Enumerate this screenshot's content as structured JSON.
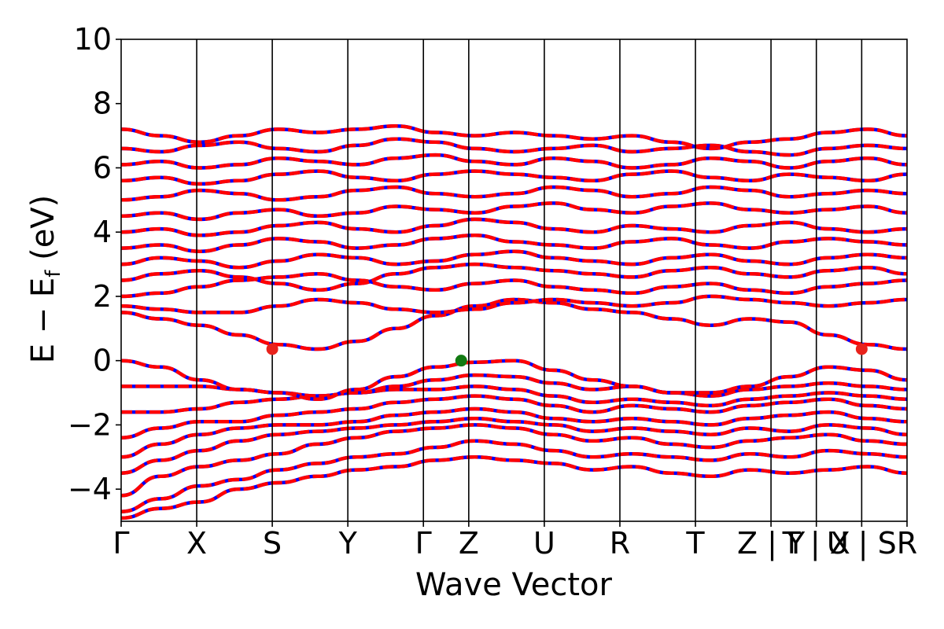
{
  "chart_data": {
    "type": "line",
    "title": "",
    "xlabel": "Wave Vector",
    "ylabel": "E − E_f (eV)",
    "ylabel_parts": {
      "main": "E − E",
      "sub": "f",
      "unit": " (eV)"
    },
    "ylim": [
      -5,
      10
    ],
    "yticks": [
      -4,
      -2,
      0,
      2,
      4,
      6,
      8,
      10
    ],
    "grid": false,
    "legend": "none",
    "kpath_positions": [
      0,
      1,
      2,
      3,
      4,
      4.6,
      5.6,
      6.6,
      7.6,
      8.6,
      9.2,
      9.8,
      10.4
    ],
    "kpath_labels": [
      "Γ",
      "X",
      "S",
      "Y",
      "Γ",
      "Z",
      "U",
      "R",
      "T",
      "Z | Y",
      "T | X",
      "U | S",
      "R"
    ],
    "segment_breaks": [
      8.6,
      9.2,
      9.8
    ],
    "series_colors": {
      "spin_up": "#ff0000",
      "spin_down": "#0000ff"
    },
    "band_edges": {
      "cbm": [
        {
          "k": 2,
          "energy": 0.36
        },
        {
          "k": 9.8,
          "energy": 0.36
        }
      ],
      "vbm": [
        {
          "k": 4.5,
          "energy": 0.0
        }
      ],
      "cbm_color": "#e8221c",
      "vbm_color": "#127a12"
    },
    "bands": [
      [
        -4.9,
        -4.6,
        -4.4,
        -4.0,
        -3.8,
        -3.6,
        -3.4,
        -3.3,
        -3.1,
        -3.0,
        -3.1,
        -3.2,
        -3.4,
        -3.3,
        -3.5,
        -3.6,
        -3.4,
        -3.5,
        -3.4,
        -3.3,
        -3.5
      ],
      [
        -4.7,
        -4.3,
        -3.9,
        -3.7,
        -3.4,
        -3.2,
        -3.0,
        -2.9,
        -2.7,
        -2.5,
        -2.6,
        -2.8,
        -3.0,
        -2.9,
        -3.0,
        -3.1,
        -2.9,
        -3.0,
        -2.8,
        -2.9,
        -3.0
      ],
      [
        -4.2,
        -3.6,
        -3.3,
        -3.1,
        -2.9,
        -2.6,
        -2.4,
        -2.2,
        -2.1,
        -2.0,
        -2.1,
        -2.3,
        -2.5,
        -2.4,
        -2.6,
        -2.7,
        -2.5,
        -2.4,
        -2.3,
        -2.5,
        -2.6
      ],
      [
        -3.5,
        -3.1,
        -2.8,
        -2.5,
        -2.3,
        -2.2,
        -2.1,
        -2.0,
        -1.9,
        -1.8,
        -1.9,
        -2.0,
        -2.2,
        -2.1,
        -2.2,
        -2.3,
        -2.1,
        -2.2,
        -2.0,
        -2.1,
        -2.3
      ],
      [
        -3.0,
        -2.6,
        -2.3,
        -2.1,
        -2.0,
        -2.0,
        -1.9,
        -1.7,
        -1.6,
        -1.5,
        -1.6,
        -1.8,
        -1.9,
        -1.8,
        -1.9,
        -2.0,
        -1.8,
        -1.7,
        -1.6,
        -1.8,
        -1.9
      ],
      [
        -2.4,
        -2.1,
        -1.9,
        -1.9,
        -1.7,
        -1.6,
        -1.5,
        -1.3,
        -1.2,
        -1.1,
        -1.2,
        -1.4,
        -1.6,
        -1.4,
        -1.5,
        -1.6,
        -1.4,
        -1.3,
        -1.2,
        -1.4,
        -1.5
      ],
      [
        -1.6,
        -1.6,
        -1.5,
        -1.3,
        -1.2,
        -1.1,
        -1.0,
        -0.9,
        -0.9,
        -0.8,
        -0.9,
        -1.1,
        -1.3,
        -1.2,
        -1.3,
        -1.4,
        -1.2,
        -1.1,
        -1.0,
        -1.1,
        -1.2
      ],
      [
        -0.8,
        -0.8,
        -0.8,
        -0.9,
        -1.0,
        -1.1,
        -1.0,
        -0.8,
        -0.6,
        -0.45,
        -0.5,
        -0.7,
        -0.9,
        -0.8,
        -1.0,
        -1.1,
        -0.9,
        -0.8,
        -0.7,
        -0.8,
        -0.9
      ],
      [
        0.0,
        -0.2,
        -0.6,
        -0.9,
        -1.0,
        -1.2,
        -0.9,
        -0.5,
        -0.2,
        -0.05,
        0.0,
        -0.3,
        -0.6,
        -0.8,
        -1.0,
        -1.0,
        -0.8,
        -0.5,
        -0.2,
        -0.3,
        -0.6
      ],
      [
        1.5,
        1.3,
        1.1,
        0.8,
        0.5,
        0.36,
        0.6,
        1.0,
        1.4,
        1.7,
        1.9,
        1.8,
        1.6,
        1.5,
        1.3,
        1.1,
        1.3,
        1.2,
        0.8,
        0.5,
        0.36
      ],
      [
        1.7,
        1.6,
        1.5,
        1.5,
        1.7,
        1.9,
        1.8,
        1.6,
        1.5,
        1.6,
        1.8,
        1.9,
        1.8,
        1.7,
        1.8,
        2.0,
        1.9,
        1.8,
        1.7,
        1.8,
        1.9
      ],
      [
        2.0,
        2.1,
        2.3,
        2.5,
        2.6,
        2.7,
        2.5,
        2.3,
        2.2,
        2.4,
        2.5,
        2.3,
        2.2,
        2.1,
        2.3,
        2.4,
        2.2,
        2.1,
        2.3,
        2.4,
        2.5
      ],
      [
        2.5,
        2.7,
        2.8,
        2.6,
        2.4,
        2.2,
        2.4,
        2.7,
        2.9,
        3.0,
        2.9,
        2.8,
        2.7,
        2.6,
        2.8,
        2.9,
        2.7,
        2.6,
        2.8,
        2.9,
        2.7
      ],
      [
        3.0,
        3.2,
        3.1,
        2.9,
        3.1,
        3.3,
        3.2,
        3.0,
        3.1,
        3.3,
        3.4,
        3.2,
        3.1,
        3.0,
        3.2,
        3.3,
        3.1,
        3.0,
        3.2,
        3.3,
        3.2
      ],
      [
        3.5,
        3.6,
        3.4,
        3.6,
        3.8,
        3.7,
        3.5,
        3.6,
        3.8,
        3.9,
        3.7,
        3.6,
        3.5,
        3.7,
        3.8,
        3.6,
        3.5,
        3.7,
        3.8,
        3.7,
        3.6
      ],
      [
        4.0,
        4.1,
        3.9,
        4.0,
        4.2,
        4.3,
        4.1,
        4.0,
        4.2,
        4.4,
        4.3,
        4.1,
        4.0,
        4.2,
        4.1,
        4.0,
        4.2,
        4.3,
        4.1,
        4.0,
        4.1
      ],
      [
        4.5,
        4.6,
        4.4,
        4.6,
        4.7,
        4.5,
        4.6,
        4.8,
        4.7,
        4.6,
        4.8,
        4.9,
        4.7,
        4.6,
        4.8,
        4.9,
        4.7,
        4.6,
        4.7,
        4.8,
        4.6
      ],
      [
        5.0,
        5.1,
        5.3,
        5.2,
        5.0,
        5.1,
        5.3,
        5.4,
        5.2,
        5.1,
        5.2,
        5.4,
        5.3,
        5.1,
        5.2,
        5.4,
        5.3,
        5.1,
        5.2,
        5.3,
        5.2
      ],
      [
        5.6,
        5.7,
        5.5,
        5.6,
        5.8,
        5.9,
        5.7,
        5.6,
        5.8,
        5.9,
        5.8,
        5.7,
        5.6,
        5.8,
        5.9,
        5.7,
        5.6,
        5.8,
        5.7,
        5.6,
        5.8
      ],
      [
        6.1,
        6.2,
        6.0,
        6.1,
        6.3,
        6.2,
        6.1,
        6.3,
        6.4,
        6.2,
        6.1,
        6.3,
        6.2,
        6.0,
        6.1,
        6.3,
        6.2,
        6.0,
        6.2,
        6.3,
        6.1
      ],
      [
        6.6,
        6.5,
        6.7,
        6.8,
        6.6,
        6.5,
        6.7,
        6.9,
        6.8,
        6.6,
        6.5,
        6.6,
        6.7,
        6.5,
        6.6,
        6.7,
        6.5,
        6.4,
        6.6,
        6.7,
        6.6
      ],
      [
        7.2,
        7.0,
        6.8,
        7.0,
        7.2,
        7.1,
        7.2,
        7.3,
        7.1,
        7.0,
        7.1,
        7.0,
        6.9,
        7.0,
        6.8,
        6.6,
        6.8,
        6.9,
        7.1,
        7.2,
        7.0
      ]
    ]
  }
}
